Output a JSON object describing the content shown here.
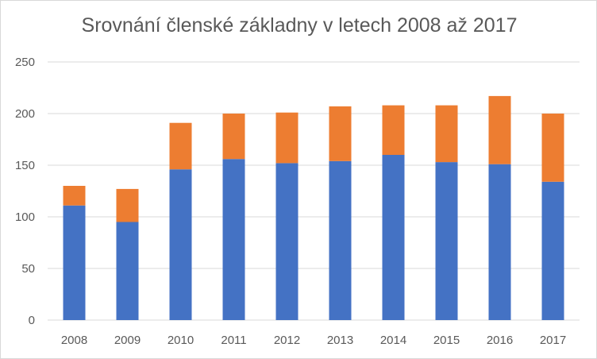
{
  "chart_data": {
    "type": "bar",
    "stacked": true,
    "title": "Srovnání členské základny v letech 2008 až 2017",
    "xlabel": "",
    "ylabel": "",
    "categories": [
      "2008",
      "2009",
      "2010",
      "2011",
      "2012",
      "2013",
      "2014",
      "2015",
      "2016",
      "2017"
    ],
    "series": [
      {
        "color": "#4472c4",
        "values": [
          111,
          95,
          146,
          156,
          152,
          154,
          160,
          153,
          151,
          134
        ]
      },
      {
        "color": "#ed7d31",
        "values": [
          19,
          32,
          45,
          44,
          49,
          53,
          48,
          55,
          66,
          66
        ]
      }
    ],
    "ylim": [
      0,
      250
    ],
    "yticks": [
      "0",
      "50",
      "100",
      "150",
      "200",
      "250"
    ],
    "grid": true,
    "legend": "none"
  }
}
